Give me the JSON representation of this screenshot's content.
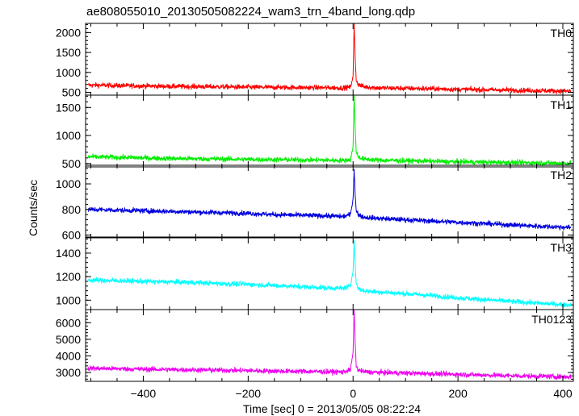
{
  "chart_data": {
    "type": "line",
    "title": "ae808055010_20130505082224_wam3_trn_4band_long.qdp",
    "xlabel": "Time [sec] 0 = 2013/05/05 08:22:24",
    "ylabel": "Counts/sec",
    "xlim": [
      -510,
      420
    ],
    "xticks": [
      -400,
      -200,
      0,
      200,
      400
    ],
    "xtick_labels": [
      "−400",
      "−200",
      "0",
      "200",
      "400"
    ],
    "grid": false,
    "panels": [
      {
        "name": "TH0",
        "color": "#ff0000",
        "ylim": [
          430,
          2230
        ],
        "yticks": [
          500,
          1000,
          1500,
          2000
        ],
        "x": [
          -500,
          -450,
          -400,
          -350,
          -300,
          -250,
          -200,
          -150,
          -100,
          -50,
          -20,
          -5,
          0,
          2,
          4,
          6,
          10,
          20,
          50,
          100,
          150,
          200,
          250,
          300,
          350,
          410
        ],
        "y": [
          680,
          670,
          660,
          650,
          645,
          640,
          630,
          625,
          620,
          615,
          610,
          630,
          900,
          2230,
          1400,
          800,
          700,
          640,
          610,
          600,
          590,
          575,
          565,
          555,
          545,
          530
        ]
      },
      {
        "name": "TH1",
        "color": "#00ee00",
        "ylim": [
          440,
          1720
        ],
        "yticks": [
          500,
          1000,
          1500
        ],
        "x": [
          -500,
          -450,
          -400,
          -350,
          -300,
          -250,
          -200,
          -150,
          -100,
          -50,
          -20,
          -5,
          0,
          2,
          4,
          6,
          10,
          20,
          50,
          100,
          150,
          200,
          250,
          300,
          350,
          410
        ],
        "y": [
          620,
          610,
          600,
          590,
          585,
          580,
          575,
          570,
          565,
          560,
          555,
          570,
          800,
          1720,
          1150,
          700,
          620,
          580,
          560,
          550,
          540,
          530,
          525,
          518,
          512,
          505
        ]
      },
      {
        "name": "TH2",
        "color": "#0000dd",
        "ylim": [
          585,
          1145
        ],
        "yticks": [
          600,
          800,
          1000
        ],
        "x": [
          -500,
          -450,
          -400,
          -350,
          -300,
          -250,
          -200,
          -150,
          -100,
          -50,
          -20,
          -5,
          0,
          2,
          4,
          6,
          10,
          20,
          50,
          100,
          150,
          200,
          250,
          300,
          350,
          410
        ],
        "y": [
          800,
          795,
          790,
          785,
          780,
          775,
          770,
          760,
          755,
          750,
          745,
          760,
          880,
          1120,
          920,
          790,
          760,
          740,
          730,
          720,
          710,
          700,
          690,
          680,
          670,
          660
        ]
      },
      {
        "name": "TH3",
        "color": "#00ffff",
        "ylim": [
          920,
          1530
        ],
        "yticks": [
          1000,
          1200,
          1400
        ],
        "x": [
          -500,
          -450,
          -400,
          -350,
          -300,
          -250,
          -200,
          -150,
          -100,
          -50,
          -20,
          -5,
          0,
          2,
          4,
          6,
          10,
          20,
          50,
          100,
          150,
          200,
          250,
          300,
          350,
          410
        ],
        "y": [
          1170,
          1165,
          1160,
          1155,
          1150,
          1140,
          1135,
          1125,
          1115,
          1105,
          1100,
          1120,
          1250,
          1510,
          1300,
          1140,
          1100,
          1080,
          1070,
          1055,
          1040,
          1020,
          1005,
          990,
          975,
          960
        ]
      },
      {
        "name": "TH0123",
        "color": "#ee00ee",
        "ylim": [
          2470,
          6790
        ],
        "yticks": [
          3000,
          4000,
          5000,
          6000
        ],
        "x": [
          -500,
          -450,
          -400,
          -350,
          -300,
          -250,
          -200,
          -150,
          -100,
          -50,
          -20,
          -5,
          0,
          2,
          4,
          6,
          10,
          20,
          50,
          100,
          150,
          200,
          250,
          300,
          350,
          410
        ],
        "y": [
          3250,
          3230,
          3200,
          3180,
          3160,
          3140,
          3120,
          3090,
          3070,
          3050,
          3030,
          3150,
          4200,
          6790,
          4900,
          3350,
          3150,
          3050,
          3000,
          2970,
          2930,
          2890,
          2850,
          2810,
          2780,
          2740
        ]
      }
    ]
  }
}
